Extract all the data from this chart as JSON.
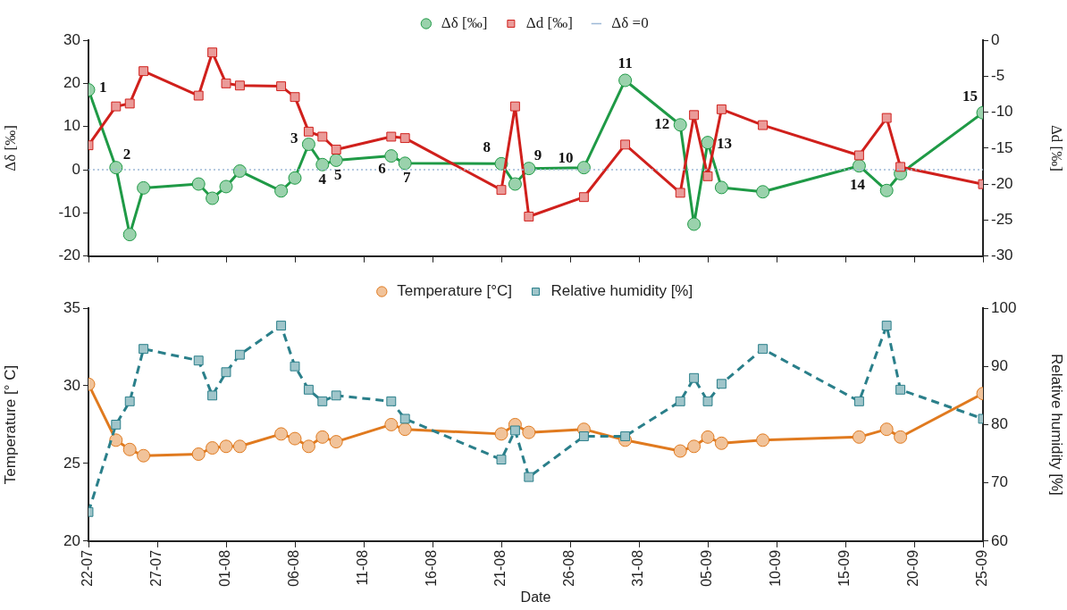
{
  "chart_data": [
    {
      "type": "line",
      "ylabel": "Δδ [‰]",
      "y2label": "Δd [‰]",
      "x": [
        "--07-22",
        "--07-24",
        "--07-25",
        "--07-26",
        "--07-30",
        "--07-31",
        "--08-01",
        "--08-02",
        "--08-05",
        "--08-06",
        "--08-07",
        "--08-08",
        "--08-09",
        "--08-13",
        "--08-14",
        "--08-21",
        "--08-22",
        "--08-23",
        "--08-27",
        "--08-30",
        "--09-03",
        "--09-04",
        "--09-05",
        "--09-06",
        "--09-09",
        "--09-16",
        "--09-18",
        "--09-19",
        "--09-25"
      ],
      "series": [
        {
          "name": "Δδ [‰]",
          "color": "#1f9a46",
          "marker": "circle",
          "line_style": "solid",
          "values": [
            18.5,
            0.5,
            -15,
            -4.2,
            -3.3,
            -6.6,
            -3.9,
            -0.3,
            -4.9,
            -1.9,
            5.9,
            1.2,
            2.2,
            3.2,
            1.5,
            1.4,
            -3.3,
            0.3,
            0.5,
            20.7,
            10.4,
            -12.6,
            6.3,
            -4.1,
            -5.1,
            0.9,
            -4.8,
            -0.9,
            13.2
          ]
        },
        {
          "name": "Δd [‰]",
          "color": "#d0201c",
          "marker": "square",
          "line_style": "solid",
          "axis": "y2",
          "values": [
            -14.6,
            -9.2,
            -8.8,
            -4.3,
            -7.7,
            -1.7,
            -6.0,
            -6.3,
            -6.4,
            -7.9,
            -12.7,
            -13.4,
            -15.2,
            -13.4,
            -13.6,
            -20.8,
            -9.2,
            -24.5,
            -21.8,
            -14.5,
            -21.2,
            -10.4,
            -18.9,
            -9.6,
            -11.8,
            -16.0,
            -10.8,
            -17.6,
            -20.0
          ]
        }
      ],
      "ref_lines": [
        {
          "axis": "y",
          "value": 0,
          "label": "Δδ =0",
          "color": "#9db8d6",
          "line_style": "dotted"
        }
      ],
      "annotations": [
        {
          "text": "1",
          "x": "--07-22",
          "y": 18.5
        },
        {
          "text": "2",
          "x": "--07-24",
          "y": 0.5
        },
        {
          "text": "3",
          "x": "--08-07",
          "y": 5.9
        },
        {
          "text": "4",
          "x": "--08-08",
          "y": 1.2
        },
        {
          "text": "5",
          "x": "--08-09",
          "y": 2.2
        },
        {
          "text": "6",
          "x": "--08-13",
          "y": 3.2
        },
        {
          "text": "7",
          "x": "--08-14",
          "y": 1.5
        },
        {
          "text": "8",
          "x": "--08-21",
          "y": 1.4
        },
        {
          "text": "9",
          "x": "--08-23",
          "y": 0.3
        },
        {
          "text": "10",
          "x": "--08-27",
          "y": 0.5
        },
        {
          "text": "11",
          "x": "--08-30",
          "y": 20.7
        },
        {
          "text": "12",
          "x": "--09-03",
          "y": 10.4
        },
        {
          "text": "13",
          "x": "--09-05",
          "y": 6.3
        },
        {
          "text": "14",
          "x": "--09-16",
          "y": 0.9
        },
        {
          "text": "15",
          "x": "--09-25",
          "y": 13.2
        }
      ],
      "xlim": [
        "--07-22",
        "--09-25"
      ],
      "xticks": [
        {
          "value": "--07-22",
          "label": null
        },
        {
          "value": "--07-27",
          "label": null
        },
        {
          "value": "--08-01",
          "label": null
        },
        {
          "value": "--08-06",
          "label": null
        },
        {
          "value": "--08-11",
          "label": null
        },
        {
          "value": "--08-16",
          "label": null
        },
        {
          "value": "--08-21",
          "label": null
        },
        {
          "value": "--08-26",
          "label": null
        },
        {
          "value": "--08-31",
          "label": null
        },
        {
          "value": "--09-05",
          "label": null
        },
        {
          "value": "--09-10",
          "label": null
        },
        {
          "value": "--09-15",
          "label": null
        },
        {
          "value": "--09-20",
          "label": null
        },
        {
          "value": "--09-25",
          "label": null
        }
      ],
      "ylim": [
        -20,
        30
      ],
      "yticks": [
        -20,
        -10,
        0,
        10,
        20,
        30
      ],
      "y2lim": [
        -30,
        0
      ],
      "y2ticks": [
        -30,
        -25,
        -20,
        -15,
        -10,
        -5,
        0
      ],
      "tick_labels": "y",
      "grid": false,
      "legend": "top"
    },
    {
      "type": "line",
      "xlabel": "Date",
      "ylabel": "Temperature [° C]",
      "y2label": "Relative humidity [%]",
      "x": [
        "--07-22",
        "--07-24",
        "--07-25",
        "--07-26",
        "--07-30",
        "--07-31",
        "--08-01",
        "--08-02",
        "--08-05",
        "--08-06",
        "--08-07",
        "--08-08",
        "--08-09",
        "--08-13",
        "--08-14",
        "--08-21",
        "--08-22",
        "--08-23",
        "--08-27",
        "--08-30",
        "--09-03",
        "--09-04",
        "--09-05",
        "--09-06",
        "--09-09",
        "--09-16",
        "--09-18",
        "--09-19",
        "--09-25"
      ],
      "series": [
        {
          "name": "Temperature [°C]",
          "color": "#e07a1f",
          "marker": "circle",
          "line_style": "solid",
          "values": [
            30.1,
            26.5,
            25.9,
            25.5,
            25.6,
            26.0,
            26.1,
            26.1,
            26.9,
            26.6,
            26.1,
            26.7,
            26.4,
            27.5,
            27.2,
            26.9,
            27.5,
            27.0,
            27.2,
            26.5,
            25.8,
            26.1,
            26.7,
            26.3,
            26.5,
            26.7,
            27.2,
            26.7,
            29.5
          ]
        },
        {
          "name": "Relative humidity [%]",
          "color": "#2a7f8a",
          "marker": "square",
          "line_style": "dashed",
          "axis": "y2",
          "values": [
            65,
            80,
            84,
            93,
            91,
            85,
            89,
            92,
            97,
            90,
            86,
            84,
            85,
            84,
            81,
            74,
            79,
            71,
            78,
            78,
            84,
            88,
            84,
            87,
            93,
            84,
            97,
            86,
            81
          ]
        }
      ],
      "xlim": [
        "--07-22",
        "--09-25"
      ],
      "xticks": [
        {
          "value": "--07-22",
          "label": "22-07"
        },
        {
          "value": "--07-27",
          "label": "27-07"
        },
        {
          "value": "--08-01",
          "label": "01-08"
        },
        {
          "value": "--08-06",
          "label": "06-08"
        },
        {
          "value": "--08-11",
          "label": "11-08"
        },
        {
          "value": "--08-16",
          "label": "16-08"
        },
        {
          "value": "--08-21",
          "label": "21-08"
        },
        {
          "value": "--08-26",
          "label": "26-08"
        },
        {
          "value": "--08-31",
          "label": "31-08"
        },
        {
          "value": "--09-05",
          "label": "05-09"
        },
        {
          "value": "--09-10",
          "label": "10-09"
        },
        {
          "value": "--09-15",
          "label": "15-09"
        },
        {
          "value": "--09-20",
          "label": "20-09"
        },
        {
          "value": "--09-25",
          "label": "25-09"
        }
      ],
      "ylim": [
        20,
        35
      ],
      "yticks": [
        20,
        25,
        30,
        35
      ],
      "y2lim": [
        60,
        100
      ],
      "y2ticks": [
        60,
        70,
        80,
        90,
        100
      ],
      "grid": false,
      "legend": "top"
    }
  ]
}
